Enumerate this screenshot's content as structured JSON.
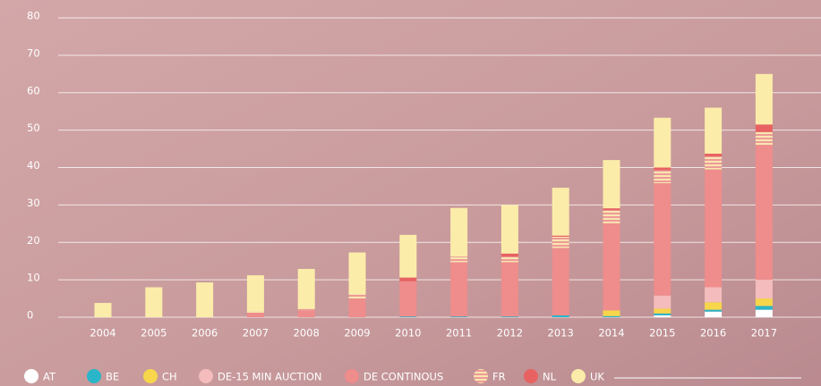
{
  "chart_data": {
    "type": "stacked_bar",
    "categories": [
      "2004",
      "2005",
      "2006",
      "2007",
      "2008",
      "2009",
      "2010",
      "2011",
      "2012",
      "2013",
      "2014",
      "2015",
      "2016",
      "2017"
    ],
    "series": [
      {
        "name": "AT",
        "color": "#ffffff",
        "values": [
          0,
          0,
          0,
          0,
          0,
          0,
          0,
          0,
          0,
          0,
          0,
          0.5,
          1.5,
          2
        ]
      },
      {
        "name": "BE",
        "color": "#2bb5c8",
        "values": [
          0,
          0,
          0,
          0,
          0,
          0,
          0.2,
          0.2,
          0.2,
          0.5,
          0.3,
          0.5,
          0.5,
          1
        ]
      },
      {
        "name": "CH",
        "color": "#f7d64c",
        "values": [
          0,
          0,
          0,
          0,
          0,
          0,
          0,
          0,
          0,
          0,
          1.5,
          1.3,
          2,
          2
        ]
      },
      {
        "name": "DE-15 MIN AUCTION",
        "color": "#f4bcbc",
        "values": [
          0,
          0,
          0,
          0,
          0,
          0,
          0,
          0,
          0,
          0,
          0,
          3.5,
          4,
          5
        ]
      },
      {
        "name": "DE CONTINOUS",
        "color": "#ef8c8c",
        "values": [
          0,
          0,
          0,
          1.2,
          1.7,
          5,
          9.4,
          14.5,
          14.5,
          18,
          23.3,
          30,
          31.5,
          36
        ]
      },
      {
        "name": "FR",
        "color": "#f8e6b0",
        "pattern": "stripes",
        "values": [
          0,
          0,
          0,
          0.3,
          0.5,
          1.2,
          0,
          1.5,
          1.5,
          3,
          3.5,
          3.5,
          3.5,
          3.5
        ]
      },
      {
        "name": "NL",
        "color": "#e86262",
        "values": [
          0,
          0,
          0,
          0,
          0,
          0,
          1,
          0,
          0.8,
          0.3,
          0.5,
          0.7,
          0.7,
          2
        ]
      },
      {
        "name": "UK",
        "color": "#fcecaa",
        "values": [
          3.8,
          8,
          9.3,
          9.7,
          10.7,
          11.1,
          11.4,
          13,
          13,
          12.8,
          12.9,
          13.3,
          12.3,
          13.5
        ]
      }
    ],
    "ylim": [
      0,
      80
    ],
    "yticks": [
      0,
      10,
      20,
      30,
      40,
      50,
      60,
      70,
      80
    ],
    "grid": true
  }
}
